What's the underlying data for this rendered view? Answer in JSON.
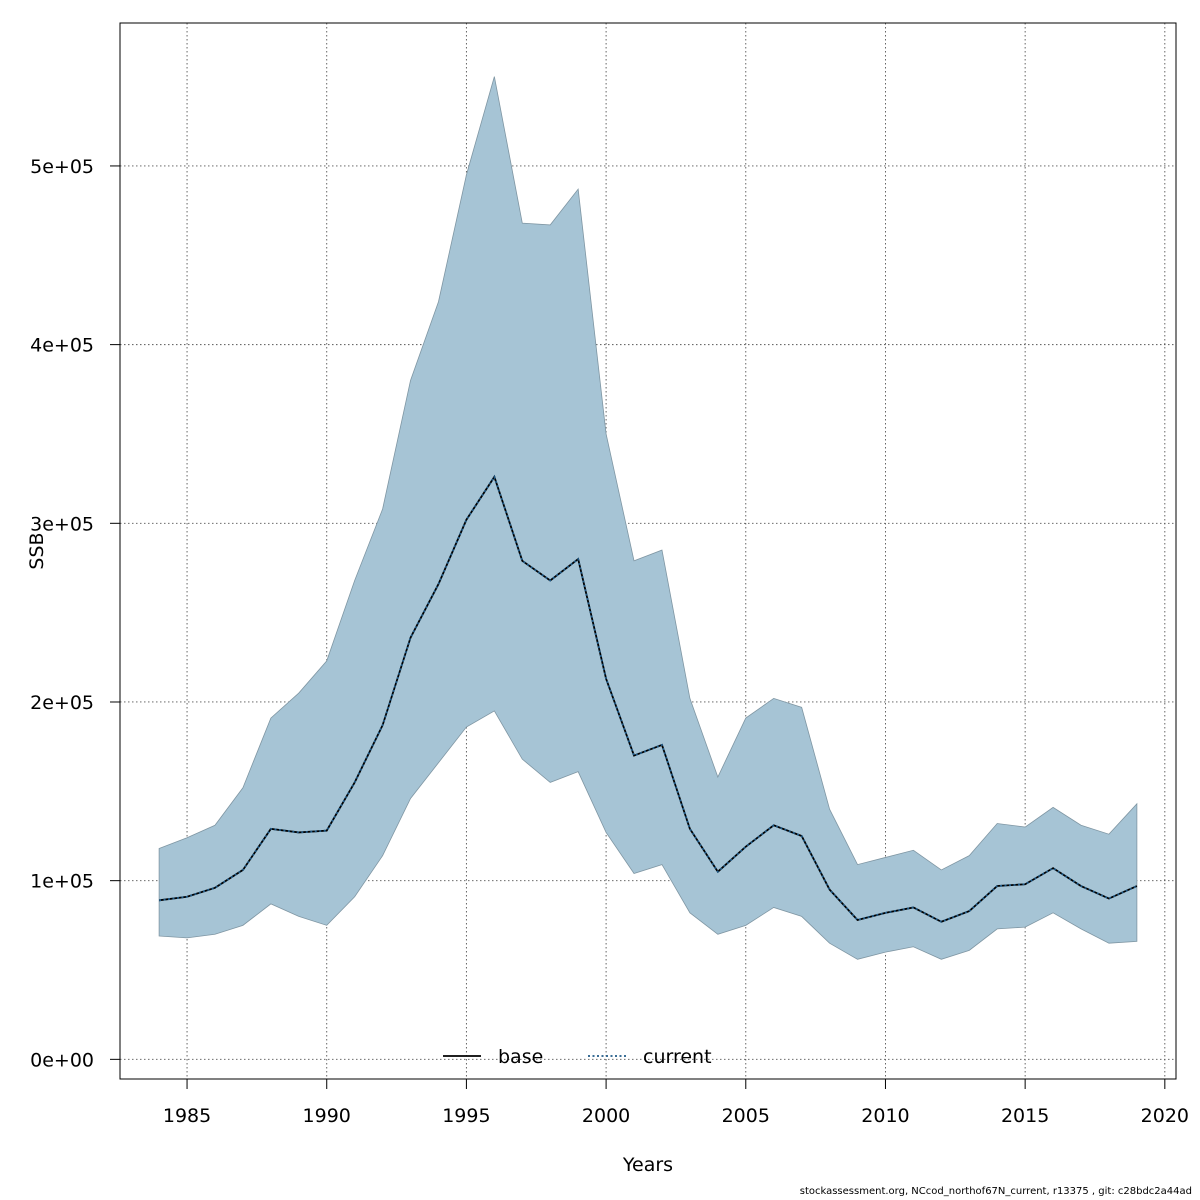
{
  "chart_data": {
    "type": "area",
    "xlabel": "Years",
    "ylabel": "SSB",
    "xlim": [
      1982.6,
      2020.4
    ],
    "ylim": [
      -11000,
      580000
    ],
    "x_ticks": [
      1985,
      1990,
      1995,
      2000,
      2005,
      2010,
      2015,
      2020
    ],
    "y_ticks": [
      0,
      100000,
      200000,
      300000,
      400000,
      500000
    ],
    "y_tick_labels": [
      "0e+00",
      "1e+05",
      "2e+05",
      "3e+05",
      "4e+05",
      "5e+05"
    ],
    "grid": true,
    "legend_position": "bottom",
    "x": [
      1984,
      1985,
      1986,
      1987,
      1988,
      1989,
      1990,
      1991,
      1992,
      1993,
      1994,
      1995,
      1996,
      1997,
      1998,
      1999,
      2000,
      2001,
      2002,
      2003,
      2004,
      2005,
      2006,
      2007,
      2008,
      2009,
      2010,
      2011,
      2012,
      2013,
      2014,
      2015,
      2016,
      2017,
      2018,
      2019
    ],
    "series": [
      {
        "name": "base",
        "style": "solid",
        "color": "#000000",
        "values": [
          89000,
          91000,
          96000,
          106000,
          129000,
          127000,
          128000,
          155000,
          187000,
          236000,
          266000,
          302000,
          326000,
          279000,
          268000,
          280000,
          213000,
          170000,
          176000,
          129000,
          105000,
          119000,
          131000,
          125000,
          95000,
          78000,
          82000,
          85000,
          77000,
          83000,
          97000,
          98000,
          107000,
          97000,
          90000,
          97000
        ]
      },
      {
        "name": "current",
        "style": "dotted",
        "color": "#1f5a87",
        "values": [
          89000,
          91000,
          96000,
          106000,
          129000,
          127000,
          128000,
          155000,
          187000,
          236000,
          266000,
          302000,
          326000,
          279000,
          268000,
          280000,
          213000,
          170000,
          176000,
          129000,
          105000,
          119000,
          131000,
          125000,
          95000,
          78000,
          82000,
          85000,
          77000,
          83000,
          97000,
          98000,
          107000,
          97000,
          90000,
          97000
        ],
        "upper": [
          118000,
          124000,
          131000,
          152000,
          191000,
          205000,
          223000,
          268000,
          308000,
          380000,
          424000,
          495000,
          550000,
          468000,
          467000,
          487000,
          350000,
          279000,
          285000,
          202000,
          158000,
          191000,
          202000,
          197000,
          140000,
          109000,
          113000,
          117000,
          106000,
          114000,
          132000,
          130000,
          141000,
          131000,
          126000,
          143000
        ],
        "lower": [
          69000,
          68000,
          70000,
          75000,
          87000,
          80000,
          75000,
          91000,
          114000,
          146000,
          166000,
          186000,
          195000,
          168000,
          155000,
          161000,
          127000,
          104000,
          109000,
          82000,
          70000,
          75000,
          85000,
          80000,
          65000,
          56000,
          60000,
          63000,
          56000,
          61000,
          73000,
          74000,
          82000,
          73000,
          65000,
          66000
        ]
      }
    ],
    "band_color": "#a6c4d5"
  },
  "footer": "stockassessment.org, NCcod_northof67N_current, r13375 , git: c28bdc2a44ad"
}
